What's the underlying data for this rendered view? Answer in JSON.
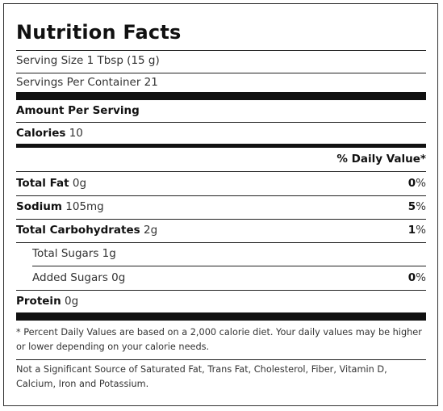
{
  "title": "Nutrition Facts",
  "serving_size": "Serving Size 1 Tbsp (15 g)",
  "servings_per_container": "Servings Per Container 21",
  "amount_per_serving": "Amount Per Serving",
  "calories": {
    "label": "Calories",
    "value": "10"
  },
  "daily_value_header": "% Daily Value*",
  "nutrients": [
    {
      "label": "Total Fat",
      "amount": "0g",
      "dv_number": "0",
      "dv_unit": "%"
    },
    {
      "label": "Sodium",
      "amount": "105mg",
      "dv_number": "5",
      "dv_unit": "%"
    },
    {
      "label": "Total Carbohydrates",
      "amount": "2g",
      "dv_number": "1",
      "dv_unit": "%"
    },
    {
      "label": "Total Sugars",
      "amount": "1g"
    },
    {
      "label": "Added Sugars",
      "amount": "0g",
      "dv_number": "0",
      "dv_unit": "%"
    },
    {
      "label": "Protein",
      "amount": "0g"
    }
  ],
  "footnote": "* Percent Daily Values are based on a 2,000 calorie diet. Your daily values may be higher or lower depending on your calorie needs.",
  "not_significant": "Not a Significant Source of Saturated Fat, Trans Fat, Cholesterol, Fiber, Vitamin D, Calcium, Iron and Potassium."
}
